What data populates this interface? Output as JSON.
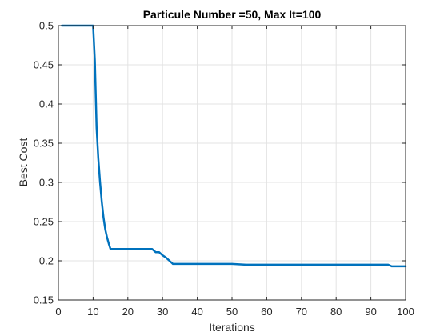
{
  "chart_data": {
    "type": "line",
    "title": "Particule Number =50, Max It=100",
    "xlabel": "Iterations",
    "ylabel": "Best Cost",
    "xlim": [
      0,
      100
    ],
    "ylim": [
      0.15,
      0.5
    ],
    "grid": true,
    "x_ticks": [
      "0",
      "10",
      "20",
      "30",
      "40",
      "50",
      "60",
      "70",
      "80",
      "90",
      "100"
    ],
    "y_ticks": [
      "0.15",
      "0.2",
      "0.25",
      "0.3",
      "0.35",
      "0.4",
      "0.45",
      "0.5"
    ],
    "series": [
      {
        "color": "#0072bd",
        "x": [
          1,
          2,
          3,
          4,
          5,
          6,
          7,
          8,
          9,
          10,
          10.5,
          11,
          11.5,
          12,
          12.5,
          13,
          13.5,
          14,
          14.5,
          15,
          16,
          17,
          18,
          19,
          20,
          21,
          22,
          23,
          24,
          25,
          26,
          27,
          28,
          29,
          30,
          31,
          32,
          33,
          34,
          35,
          40,
          45,
          50,
          54,
          55,
          60,
          65,
          70,
          75,
          80,
          85,
          90,
          95,
          96,
          97,
          98,
          99,
          100
        ],
        "y": [
          0.5,
          0.5,
          0.5,
          0.5,
          0.5,
          0.5,
          0.5,
          0.5,
          0.5,
          0.5,
          0.455,
          0.37,
          0.33,
          0.3,
          0.275,
          0.255,
          0.24,
          0.23,
          0.222,
          0.215,
          0.215,
          0.215,
          0.215,
          0.215,
          0.215,
          0.215,
          0.215,
          0.215,
          0.215,
          0.215,
          0.215,
          0.215,
          0.211,
          0.211,
          0.207,
          0.204,
          0.2,
          0.196,
          0.196,
          0.196,
          0.196,
          0.196,
          0.196,
          0.195,
          0.195,
          0.195,
          0.195,
          0.195,
          0.195,
          0.195,
          0.195,
          0.195,
          0.195,
          0.193,
          0.193,
          0.193,
          0.193,
          0.193
        ]
      }
    ]
  }
}
